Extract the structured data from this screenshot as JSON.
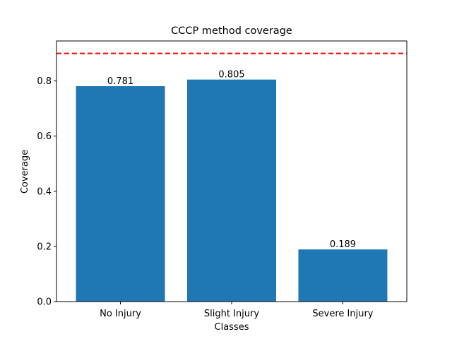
{
  "chart_data": {
    "type": "bar",
    "title": "CCCP method coverage",
    "xlabel": "Classes",
    "ylabel": "Coverage",
    "categories": [
      "No Injury",
      "Slight Injury",
      "Severe Injury"
    ],
    "values": [
      0.781,
      0.805,
      0.189
    ],
    "data_labels": [
      "0.781",
      "0.805",
      "0.189"
    ],
    "ylim": [
      0,
      0.945
    ],
    "yticks": [
      0.0,
      0.2,
      0.4,
      0.6,
      0.8
    ],
    "ytick_labels": [
      "0.0",
      "0.2",
      "0.4",
      "0.6",
      "0.8"
    ],
    "reference_line": {
      "value": 0.9,
      "style": "dashed",
      "color": "#ff0000"
    },
    "bar_color": "#1f77b4",
    "grid": false,
    "legend": "none"
  }
}
